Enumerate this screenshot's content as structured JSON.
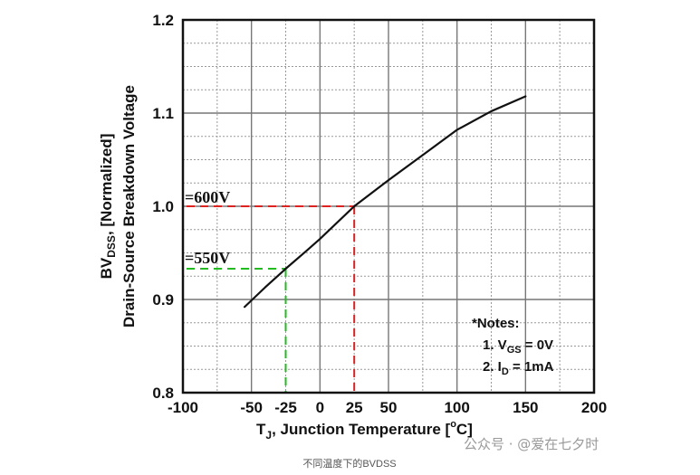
{
  "chart_data": {
    "type": "line",
    "xlabel_main": "T",
    "xlabel_sub": "J",
    "xlabel_rest": ", Junction Temperature [",
    "xlabel_unit_sup": "o",
    "xlabel_unit": "C]",
    "ylabel_line1_main": "BV",
    "ylabel_line1_sub": "DSS",
    "ylabel_line1_rest": ", [Normalized]",
    "ylabel_line2": "Drain-Source Breakdown Voltage",
    "xlim": [
      -100,
      200
    ],
    "ylim": [
      0.8,
      1.2
    ],
    "x_ticks": [
      {
        "value": -100,
        "label": "-100",
        "color": "#111111"
      },
      {
        "value": -50,
        "label": "-50",
        "color": "#111111"
      },
      {
        "value": -25,
        "label": "-25",
        "color": "#22bb22"
      },
      {
        "value": 0,
        "label": "0",
        "color": "#111111"
      },
      {
        "value": 25,
        "label": "25",
        "color": "#dd2222"
      },
      {
        "value": 50,
        "label": "50",
        "color": "#111111"
      },
      {
        "value": 100,
        "label": "100",
        "color": "#111111"
      },
      {
        "value": 150,
        "label": "150",
        "color": "#111111"
      },
      {
        "value": 200,
        "label": "200",
        "color": "#111111"
      }
    ],
    "y_ticks": [
      {
        "value": 0.8,
        "label": "0.8"
      },
      {
        "value": 0.9,
        "label": "0.9"
      },
      {
        "value": 1.0,
        "label": "1.0"
      },
      {
        "value": 1.1,
        "label": "1.1"
      },
      {
        "value": 1.2,
        "label": "1.2"
      }
    ],
    "grid": true,
    "series": [
      {
        "color": "#111111",
        "x": [
          -55,
          -40,
          -25,
          -10,
          0,
          25,
          50,
          75,
          100,
          125,
          150
        ],
        "y": [
          0.892,
          0.913,
          0.933,
          0.952,
          0.965,
          1.0,
          1.028,
          1.055,
          1.082,
          1.102,
          1.118
        ]
      }
    ],
    "annotations": [
      {
        "label": "=600V",
        "x": 25,
        "y": 1.0,
        "color": "#dd2222"
      },
      {
        "label": "=550V",
        "x": -25,
        "y": 0.933,
        "color": "#22bb22"
      }
    ],
    "notes": {
      "title": "*Notes:",
      "line1_prefix": "1. V",
      "line1_sub": "GS",
      "line1_suffix": " = 0V",
      "line2_prefix": "2. I",
      "line2_sub": "D",
      "line2_suffix": " = 1mA"
    }
  },
  "caption": "不同温度下的BVDSS",
  "watermark": "公众号 · @爱在七夕时"
}
